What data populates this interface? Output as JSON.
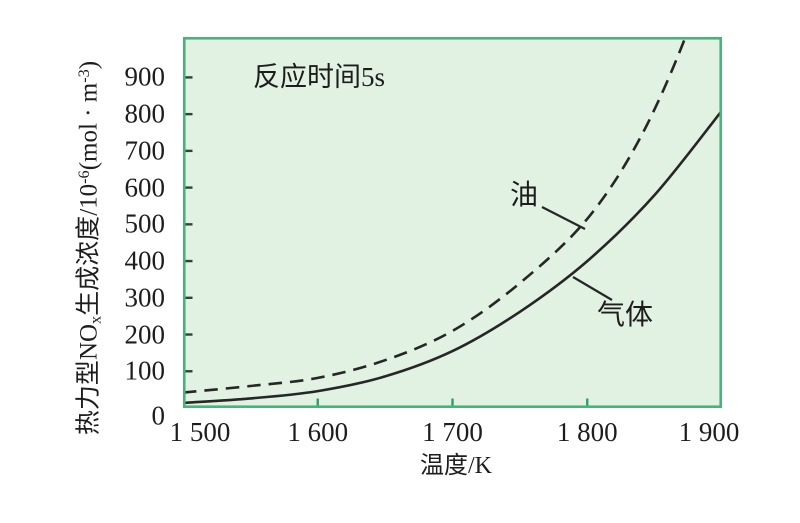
{
  "chart_data": {
    "type": "line",
    "annotation": {
      "text": "反应时间5s",
      "parts": [
        {
          "text": "反应时间"
        },
        {
          "text": "5s",
          "style": "latin"
        }
      ]
    },
    "xlabel": "温度/K",
    "xlabel_parts": [
      {
        "text": "温度"
      },
      {
        "text": "/K",
        "style": "latin"
      }
    ],
    "ylabel": "热力型NOx生成浓度/10-6(mol·m-3)",
    "ylabel_parts": [
      {
        "text": "热力型"
      },
      {
        "text": "NO",
        "style": "latin"
      },
      {
        "text": "x",
        "style": "latin sub"
      },
      {
        "text": "生成浓度"
      },
      {
        "text": "/10",
        "style": "latin"
      },
      {
        "text": "-6",
        "style": "latin sup"
      },
      {
        "text": "(mol · m",
        "style": "latin"
      },
      {
        "text": "-3",
        "style": "latin sup"
      },
      {
        "text": ")",
        "style": "latin"
      }
    ],
    "xlim": [
      1500,
      1900
    ],
    "ylim": [
      0,
      1010
    ],
    "xticks": [
      {
        "value": 1500,
        "label": "1 500"
      },
      {
        "value": 1600,
        "label": "1 600"
      },
      {
        "value": 1700,
        "label": "1 700"
      },
      {
        "value": 1800,
        "label": "1 800"
      },
      {
        "value": 1900,
        "label": "1 900"
      }
    ],
    "yticks": [
      {
        "value": 0,
        "label": "0"
      },
      {
        "value": 100,
        "label": "100"
      },
      {
        "value": 200,
        "label": "200"
      },
      {
        "value": 300,
        "label": "300"
      },
      {
        "value": 400,
        "label": "400"
      },
      {
        "value": 500,
        "label": "500"
      },
      {
        "value": 600,
        "label": "600"
      },
      {
        "value": 700,
        "label": "700"
      },
      {
        "value": 800,
        "label": "800"
      },
      {
        "value": 900,
        "label": "900"
      }
    ],
    "grid": false,
    "legend_position": "inline-labels",
    "series": [
      {
        "name": "气体",
        "line_style": "solid",
        "points": [
          [
            1500,
            14
          ],
          [
            1550,
            26
          ],
          [
            1600,
            46
          ],
          [
            1650,
            86
          ],
          [
            1700,
            155
          ],
          [
            1750,
            262
          ],
          [
            1800,
            400
          ],
          [
            1850,
            580
          ],
          [
            1900,
            810
          ]
        ]
      },
      {
        "name": "油",
        "line_style": "dashed",
        "points": [
          [
            1500,
            42
          ],
          [
            1550,
            60
          ],
          [
            1600,
            82
          ],
          [
            1650,
            130
          ],
          [
            1700,
            210
          ],
          [
            1750,
            340
          ],
          [
            1800,
            515
          ],
          [
            1840,
            740
          ],
          [
            1875,
            1030
          ],
          [
            1895,
            1270
          ]
        ]
      }
    ],
    "series_labels": [
      {
        "text": "油",
        "x": 327,
        "y": 145,
        "leader": [
          [
            359,
            170
          ],
          [
            402,
            192
          ]
        ]
      },
      {
        "text": "气体",
        "x": 414,
        "y": 265,
        "leader": [
          [
            390,
            240
          ],
          [
            429,
            263
          ]
        ]
      }
    ],
    "colors": {
      "plot_bg": "#e1f1e2",
      "border": "#4cb27b",
      "tick_y": "#27473a",
      "tick_x": "#2f9e6b",
      "curve": "#262626",
      "text": "#1d1d1d"
    }
  }
}
